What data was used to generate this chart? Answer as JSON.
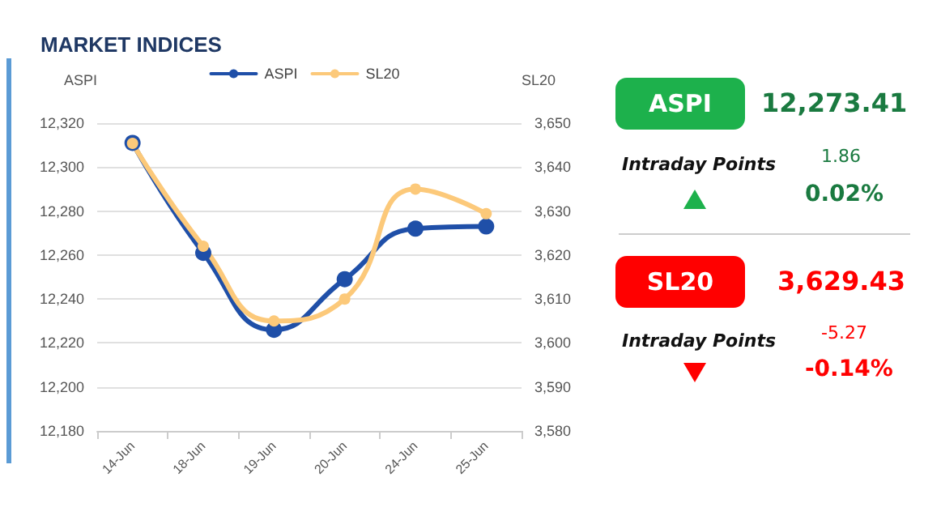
{
  "chart_data": [
    {
      "type": "line",
      "title": "MARKET INDICES",
      "ylabel": "ASPI",
      "y2label": "SL20",
      "categories": [
        "14-Jun",
        "18-Jun",
        "19-Jun",
        "20-Jun",
        "24-Jun",
        "25-Jun"
      ],
      "series": [
        {
          "name": "ASPI",
          "color": "#1f4fa8",
          "values": [
            12311,
            12261,
            12226,
            12249,
            12272,
            12273
          ]
        },
        {
          "name": "SL20",
          "color": "#fcc97a",
          "axis": "y2",
          "values": [
            3645.4,
            3622,
            3605,
            3610,
            3635,
            3629.4
          ]
        }
      ],
      "ylim": [
        12180,
        12320
      ],
      "yticks": [
        {
          "value": 12180,
          "label": "12,180"
        },
        {
          "value": 12200,
          "label": "12,200"
        },
        {
          "value": 12220,
          "label": "12,220"
        },
        {
          "value": 12240,
          "label": "12,240"
        },
        {
          "value": 12260,
          "label": "12,260"
        },
        {
          "value": 12280,
          "label": "12,280"
        },
        {
          "value": 12300,
          "label": "12,300"
        },
        {
          "value": 12320,
          "label": "12,320"
        }
      ],
      "y2lim": [
        3580,
        3650
      ],
      "y2ticks": [
        {
          "value": 3580,
          "label": "3,580"
        },
        {
          "value": 3590,
          "label": "3,590"
        },
        {
          "value": 3600,
          "label": "3,600"
        },
        {
          "value": 3610,
          "label": "3,610"
        },
        {
          "value": 3620,
          "label": "3,620"
        },
        {
          "value": 3630,
          "label": "3,630"
        },
        {
          "value": 3640,
          "label": "3,640"
        },
        {
          "value": 3650,
          "label": "3,650"
        }
      ],
      "grid": "y",
      "legend": "top",
      "marker": "circle",
      "line_style": "solid"
    },
    {
      "type": "other",
      "annotations": [
        "ASPI",
        "12,273.41",
        "Intraday Points",
        "1.86",
        "0.02%",
        "SL20",
        "3,629.43",
        "Intraday Points",
        "-5.27",
        "-0.14%"
      ]
    }
  ]
}
